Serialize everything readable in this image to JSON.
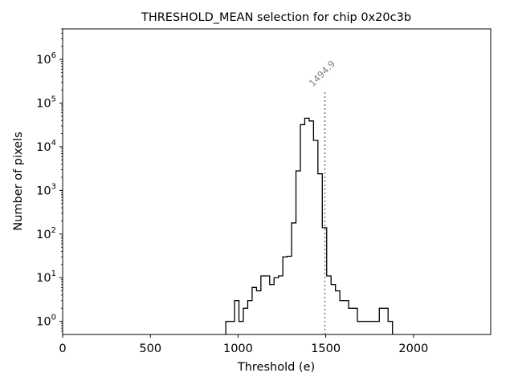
{
  "chart_data": {
    "type": "histogram",
    "title": "THRESHOLD_MEAN selection for chip 0x20c3b",
    "xlabel": "Threshold (e)",
    "ylabel": "Number of pixels",
    "xlim": [
      0,
      2440
    ],
    "ylim_log10": [
      -0.3,
      6.7
    ],
    "yscale": "log",
    "xticks": [
      {
        "value": 0,
        "label": "0"
      },
      {
        "value": 500,
        "label": "500"
      },
      {
        "value": 1000,
        "label": "1000"
      },
      {
        "value": 1500,
        "label": "1500"
      },
      {
        "value": 2000,
        "label": "2000"
      }
    ],
    "yticks": [
      {
        "exp": 0,
        "base": "10",
        "sup": "0"
      },
      {
        "exp": 1,
        "base": "10",
        "sup": "1"
      },
      {
        "exp": 2,
        "base": "10",
        "sup": "2"
      },
      {
        "exp": 3,
        "base": "10",
        "sup": "3"
      },
      {
        "exp": 4,
        "base": "10",
        "sup": "4"
      },
      {
        "exp": 5,
        "base": "10",
        "sup": "5"
      },
      {
        "exp": 6,
        "base": "10",
        "sup": "6"
      }
    ],
    "bin_edges": [
      930,
      955,
      980,
      1005,
      1030,
      1055,
      1080,
      1105,
      1130,
      1155,
      1180,
      1205,
      1230,
      1255,
      1280,
      1305,
      1330,
      1355,
      1380,
      1405,
      1430,
      1455,
      1480,
      1505,
      1530,
      1555,
      1580,
      1605,
      1630,
      1655,
      1680,
      1705,
      1730,
      1755,
      1780,
      1805,
      1830,
      1855,
      1880
    ],
    "counts": [
      1,
      1,
      3,
      1,
      2,
      3,
      6,
      5,
      11,
      11,
      7,
      10,
      11,
      30,
      31,
      180,
      2800,
      32000,
      45000,
      39000,
      14000,
      2400,
      140,
      11,
      7,
      5,
      3,
      3,
      2,
      2,
      1,
      1,
      1,
      1,
      1,
      2,
      2,
      1
    ],
    "marker": {
      "value": 1494.9,
      "label": "1494.9",
      "top_count": 180000
    }
  }
}
